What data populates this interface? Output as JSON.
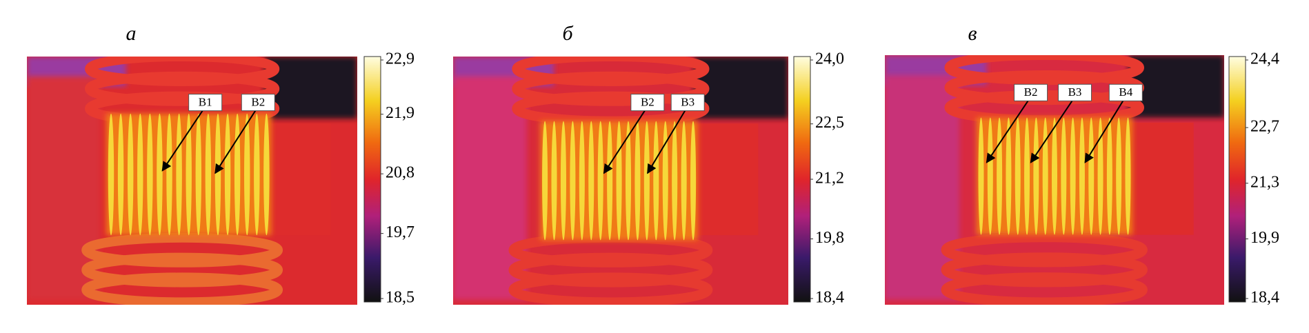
{
  "panels": [
    {
      "label": "а",
      "colorbar_ticks": [
        {
          "value": 22.9,
          "label": "22,9"
        },
        {
          "value": 21.9,
          "label": "21,9"
        },
        {
          "value": 20.8,
          "label": "20,8"
        },
        {
          "value": 19.7,
          "label": "19,7"
        },
        {
          "value": 18.5,
          "label": "18,5"
        }
      ],
      "markers": [
        "B1",
        "B2"
      ]
    },
    {
      "label": "б",
      "colorbar_ticks": [
        {
          "value": 24.0,
          "label": "24,0"
        },
        {
          "value": 22.5,
          "label": "22,5"
        },
        {
          "value": 21.2,
          "label": "21,2"
        },
        {
          "value": 19.8,
          "label": "19,8"
        },
        {
          "value": 18.4,
          "label": "18,4"
        }
      ],
      "markers": [
        "B2",
        "B3"
      ]
    },
    {
      "label": "в",
      "colorbar_ticks": [
        {
          "value": 24.4,
          "label": "24,4"
        },
        {
          "value": 22.7,
          "label": "22,7"
        },
        {
          "value": 21.3,
          "label": "21,3"
        },
        {
          "value": 19.9,
          "label": "19,9"
        },
        {
          "value": 18.4,
          "label": "18,4"
        }
      ],
      "markers": [
        "B2",
        "B3",
        "B4"
      ]
    }
  ]
}
